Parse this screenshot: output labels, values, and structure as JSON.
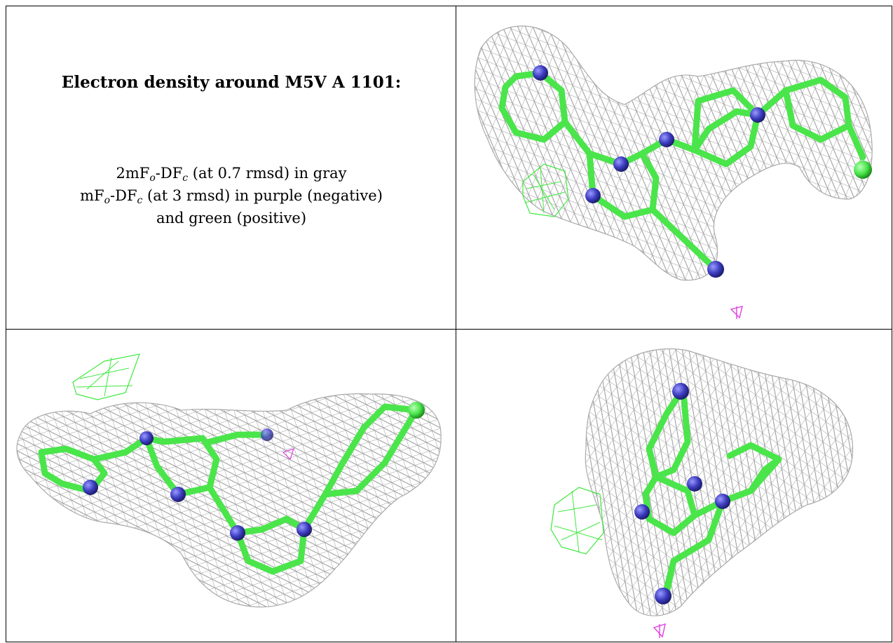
{
  "caption": {
    "title": "Electron density around M5V A 1101:",
    "line1": {
      "a": "2mF",
      "sub1": "o",
      "b": "-DF",
      "sub2": "c",
      "c": " (at 0.7 rmsd) in gray"
    },
    "line2": {
      "a": "mF",
      "sub1": "o",
      "b": "-DF",
      "sub2": "c",
      "c": " (at 3 rmsd) in purple (negative)"
    },
    "line3": "and green (positive)"
  },
  "colors": {
    "mesh_gray": "#9a9a9a",
    "bond_green": "#4ae54a",
    "atom_blue": "#3c3cc0",
    "negative_purple": "#e040e0",
    "positive_green": "#3ee83e"
  }
}
